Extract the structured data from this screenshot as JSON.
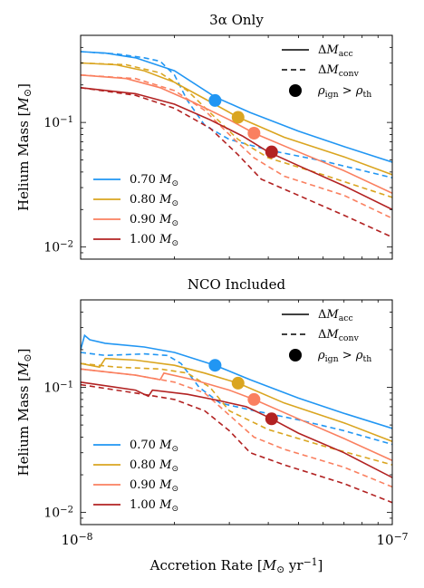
{
  "colors": {
    "c070": "#2196f3",
    "c080": "#daa520",
    "c090": "#fa8060",
    "c100": "#b22222"
  },
  "chart_data": [
    {
      "type": "line",
      "title": "3α Only",
      "xlabel": "",
      "ylabel": "Helium Mass [M☉]",
      "xscale": "log",
      "yscale": "log",
      "xlim": [
        1e-08,
        1e-07
      ],
      "ylim": [
        0.008,
        0.5
      ],
      "legend_style": [
        {
          "label": "ΔMacc",
          "style": "solid"
        },
        {
          "label": "ΔMconv",
          "style": "dashed"
        },
        {
          "label": "ρign > ρth",
          "style": "marker"
        }
      ],
      "series": [
        {
          "name": "0.70 M☉",
          "color": "#2196f3",
          "acc": [
            [
              1e-08,
              0.37
            ],
            [
              1.2e-08,
              0.36
            ],
            [
              1.5e-08,
              0.33
            ],
            [
              2e-08,
              0.26
            ],
            [
              2.7e-08,
              0.16
            ],
            [
              3.5e-08,
              0.12
            ],
            [
              5e-08,
              0.085
            ],
            [
              7e-08,
              0.064
            ],
            [
              1e-07,
              0.048
            ]
          ],
          "conv": [
            [
              1e-08,
              0.37
            ],
            [
              1.3e-08,
              0.355
            ],
            [
              1.6e-08,
              0.33
            ],
            [
              1.8e-08,
              0.31
            ],
            [
              2e-08,
              0.24
            ],
            [
              2.2e-08,
              0.15
            ],
            [
              2.5e-08,
              0.095
            ],
            [
              3e-08,
              0.073
            ],
            [
              4e-08,
              0.06
            ],
            [
              6e-08,
              0.049
            ],
            [
              1e-07,
              0.036
            ]
          ],
          "marker": [
            2.7e-08,
            0.15
          ]
        },
        {
          "name": "0.80 M☉",
          "color": "#daa520",
          "acc": [
            [
              1e-08,
              0.3
            ],
            [
              1.3e-08,
              0.29
            ],
            [
              1.6e-08,
              0.26
            ],
            [
              2e-08,
              0.21
            ],
            [
              2.5e-08,
              0.155
            ],
            [
              3.2e-08,
              0.11
            ],
            [
              4.5e-08,
              0.076
            ],
            [
              7e-08,
              0.053
            ],
            [
              1e-07,
              0.038
            ]
          ],
          "conv": [
            [
              1e-08,
              0.3
            ],
            [
              1.4e-08,
              0.29
            ],
            [
              1.8e-08,
              0.25
            ],
            [
              2.2e-08,
              0.18
            ],
            [
              2.6e-08,
              0.12
            ],
            [
              3.2e-08,
              0.073
            ],
            [
              4e-08,
              0.052
            ],
            [
              6e-08,
              0.038
            ],
            [
              1e-07,
              0.025
            ]
          ],
          "marker": [
            3.2e-08,
            0.11
          ]
        },
        {
          "name": "0.90 M☉",
          "color": "#fa8060",
          "acc": [
            [
              1e-08,
              0.24
            ],
            [
              1.4e-08,
              0.225
            ],
            [
              1.8e-08,
              0.19
            ],
            [
              2.3e-08,
              0.145
            ],
            [
              3e-08,
              0.105
            ],
            [
              3.6e-08,
              0.082
            ],
            [
              5e-08,
              0.058
            ],
            [
              7e-08,
              0.041
            ],
            [
              1e-07,
              0.027
            ]
          ],
          "conv": [
            [
              1e-08,
              0.24
            ],
            [
              1.5e-08,
              0.225
            ],
            [
              2e-08,
              0.18
            ],
            [
              2.5e-08,
              0.125
            ],
            [
              3e-08,
              0.08
            ],
            [
              3.6e-08,
              0.052
            ],
            [
              4.5e-08,
              0.037
            ],
            [
              7e-08,
              0.026
            ],
            [
              1e-07,
              0.017
            ]
          ],
          "marker": [
            3.6e-08,
            0.082
          ]
        },
        {
          "name": "1.00 M☉",
          "color": "#b22222",
          "acc": [
            [
              1e-08,
              0.19
            ],
            [
              1.5e-08,
              0.17
            ],
            [
              2e-08,
              0.14
            ],
            [
              2.6e-08,
              0.105
            ],
            [
              3.3e-08,
              0.078
            ],
            [
              4e-08,
              0.058
            ],
            [
              5e-08,
              0.045
            ],
            [
              7e-08,
              0.031
            ],
            [
              1e-07,
              0.02
            ]
          ],
          "conv": [
            [
              1e-08,
              0.19
            ],
            [
              1.5e-08,
              0.165
            ],
            [
              2e-08,
              0.13
            ],
            [
              2.6e-08,
              0.09
            ],
            [
              3.2e-08,
              0.055
            ],
            [
              3.8e-08,
              0.035
            ],
            [
              5e-08,
              0.026
            ],
            [
              7e-08,
              0.018
            ],
            [
              1e-07,
              0.012
            ]
          ],
          "marker": [
            4.1e-08,
            0.058
          ]
        }
      ]
    },
    {
      "type": "line",
      "title": "NCO Included",
      "xlabel": "Accretion Rate [M☉ yr⁻¹]",
      "ylabel": "Helium Mass [M☉]",
      "xscale": "log",
      "yscale": "log",
      "xlim": [
        1e-08,
        1e-07
      ],
      "ylim": [
        0.008,
        0.5
      ],
      "legend_style": [
        {
          "label": "ΔMacc",
          "style": "solid"
        },
        {
          "label": "ΔMconv",
          "style": "dashed"
        },
        {
          "label": "ρign > ρth",
          "style": "marker"
        }
      ],
      "series": [
        {
          "name": "0.70 M☉",
          "color": "#2196f3",
          "acc": [
            [
              1e-08,
              0.2
            ],
            [
              1.03e-08,
              0.26
            ],
            [
              1.07e-08,
              0.24
            ],
            [
              1.2e-08,
              0.225
            ],
            [
              1.6e-08,
              0.21
            ],
            [
              2e-08,
              0.19
            ],
            [
              2.7e-08,
              0.15
            ],
            [
              3.5e-08,
              0.115
            ],
            [
              5e-08,
              0.082
            ],
            [
              7e-08,
              0.062
            ],
            [
              1e-07,
              0.047
            ]
          ],
          "conv": [
            [
              1e-08,
              0.19
            ],
            [
              1.2e-08,
              0.18
            ],
            [
              1.6e-08,
              0.185
            ],
            [
              1.9e-08,
              0.18
            ],
            [
              2.1e-08,
              0.155
            ],
            [
              2.4e-08,
              0.1
            ],
            [
              2.8e-08,
              0.075
            ],
            [
              3.5e-08,
              0.066
            ],
            [
              5e-08,
              0.055
            ],
            [
              7e-08,
              0.045
            ],
            [
              1e-07,
              0.035
            ]
          ],
          "marker": [
            2.7e-08,
            0.15
          ]
        },
        {
          "name": "0.80 M☉",
          "color": "#daa520",
          "acc": [
            [
              1e-08,
              0.155
            ],
            [
              1.15e-08,
              0.145
            ],
            [
              1.2e-08,
              0.17
            ],
            [
              1.5e-08,
              0.165
            ],
            [
              2e-08,
              0.15
            ],
            [
              2.5e-08,
              0.13
            ],
            [
              3.2e-08,
              0.108
            ],
            [
              4.5e-08,
              0.075
            ],
            [
              7e-08,
              0.052
            ],
            [
              1e-07,
              0.037
            ]
          ],
          "conv": [
            [
              1e-08,
              0.155
            ],
            [
              1.3e-08,
              0.145
            ],
            [
              1.8e-08,
              0.14
            ],
            [
              2.2e-08,
              0.13
            ],
            [
              2.6e-08,
              0.1
            ],
            [
              3e-08,
              0.065
            ],
            [
              4e-08,
              0.046
            ],
            [
              6e-08,
              0.034
            ],
            [
              1e-07,
              0.024
            ]
          ],
          "marker": [
            3.2e-08,
            0.108
          ]
        },
        {
          "name": "0.90 M☉",
          "color": "#fa8060",
          "acc": [
            [
              1e-08,
              0.14
            ],
            [
              1.5e-08,
              0.125
            ],
            [
              1.8e-08,
              0.115
            ],
            [
              1.85e-08,
              0.13
            ],
            [
              2.3e-08,
              0.115
            ],
            [
              3e-08,
              0.095
            ],
            [
              3.6e-08,
              0.08
            ],
            [
              5e-08,
              0.056
            ],
            [
              7e-08,
              0.039
            ],
            [
              1e-07,
              0.026
            ]
          ],
          "conv": [
            [
              1e-08,
              0.14
            ],
            [
              1.5e-08,
              0.125
            ],
            [
              2e-08,
              0.11
            ],
            [
              2.5e-08,
              0.09
            ],
            [
              3e-08,
              0.06
            ],
            [
              3.6e-08,
              0.04
            ],
            [
              4.5e-08,
              0.032
            ],
            [
              7e-08,
              0.023
            ],
            [
              1e-07,
              0.016
            ]
          ],
          "marker": [
            3.6e-08,
            0.08
          ]
        },
        {
          "name": "1.00 M☉",
          "color": "#b22222",
          "acc": [
            [
              1e-08,
              0.11
            ],
            [
              1.5e-08,
              0.095
            ],
            [
              1.65e-08,
              0.085
            ],
            [
              1.7e-08,
              0.095
            ],
            [
              2.2e-08,
              0.088
            ],
            [
              2.8e-08,
              0.078
            ],
            [
              3.4e-08,
              0.07
            ],
            [
              4.1e-08,
              0.056
            ],
            [
              5e-08,
              0.043
            ],
            [
              7e-08,
              0.03
            ],
            [
              1e-07,
              0.019
            ]
          ],
          "conv": [
            [
              1e-08,
              0.105
            ],
            [
              1.5e-08,
              0.09
            ],
            [
              2e-08,
              0.08
            ],
            [
              2.5e-08,
              0.065
            ],
            [
              3e-08,
              0.045
            ],
            [
              3.5e-08,
              0.03
            ],
            [
              4.5e-08,
              0.024
            ],
            [
              7e-08,
              0.017
            ],
            [
              1e-07,
              0.012
            ]
          ],
          "marker": [
            4.1e-08,
            0.056
          ]
        }
      ]
    }
  ]
}
